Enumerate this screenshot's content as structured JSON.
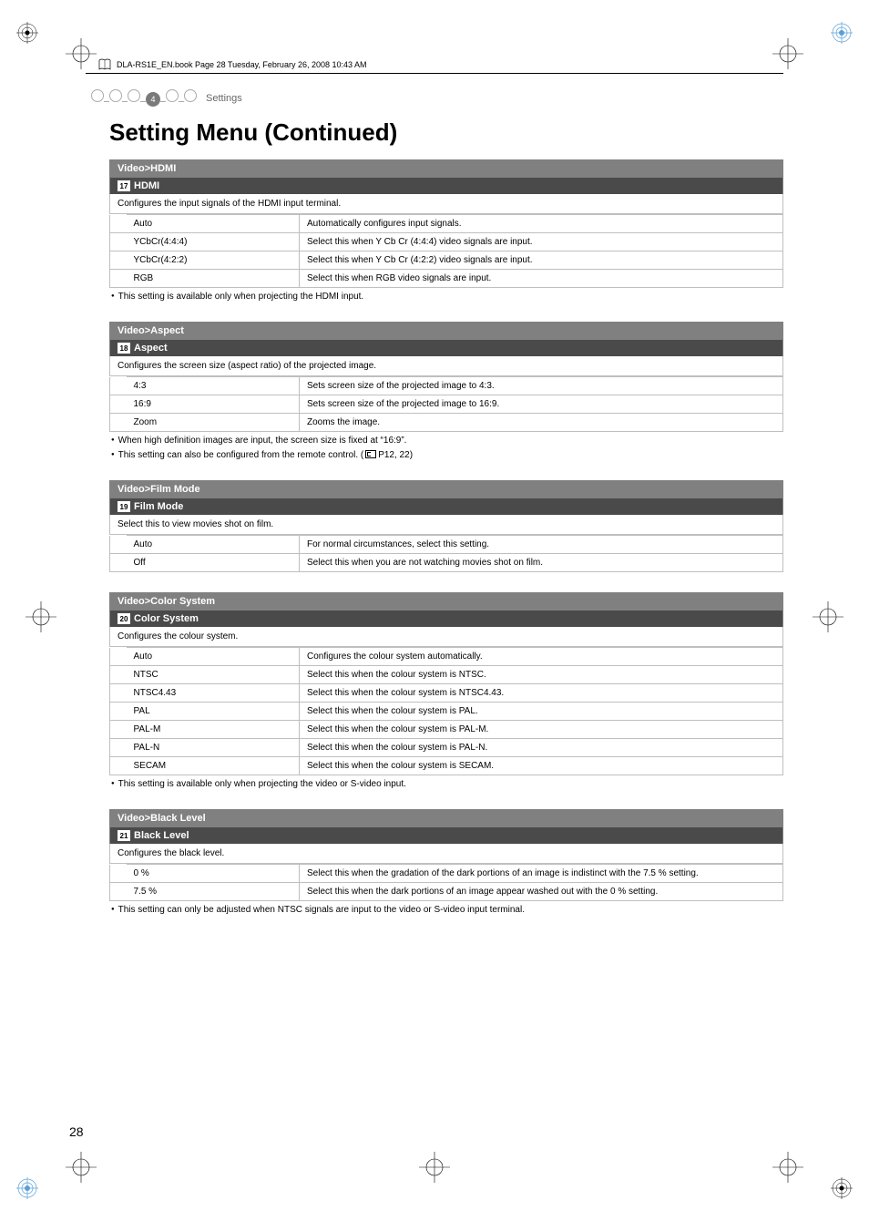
{
  "header": {
    "running_head": "DLA-RS1E_EN.book  Page 28  Tuesday, February 26, 2008  10:43 AM"
  },
  "breadcrumb": {
    "step_number": "4",
    "label": "Settings",
    "total_circles": 6,
    "active_index": 3
  },
  "page_title": "Setting Menu (Continued)",
  "page_number": "28",
  "sections": [
    {
      "crumb": "Video>HDMI",
      "badge": "17",
      "sub_label": "HDMI",
      "desc": "Configures the input signals of the HDMI input terminal.",
      "rows": [
        {
          "key": "Auto",
          "val": "Automatically configures input signals."
        },
        {
          "key": "YCbCr(4:4:4)",
          "val": "Select this when Y Cb Cr (4:4:4) video signals are input."
        },
        {
          "key": "YCbCr(4:2:2)",
          "val": "Select this when Y Cb Cr (4:2:2) video signals are input."
        },
        {
          "key": "RGB",
          "val": "Select this when RGB video signals are input."
        }
      ],
      "notes": [
        "This setting is available only when projecting the HDMI input."
      ]
    },
    {
      "crumb": "Video>Aspect",
      "badge": "18",
      "sub_label": "Aspect",
      "desc": "Configures the screen size (aspect ratio) of the projected image.",
      "rows": [
        {
          "key": "4:3",
          "val": "Sets screen size of the projected image to 4:3."
        },
        {
          "key": "16:9",
          "val": "Sets screen size of the projected image to 16:9."
        },
        {
          "key": "Zoom",
          "val": "Zooms the image."
        }
      ],
      "notes": [
        "When high definition images are input, the screen size is fixed at “16:9”."
      ],
      "ref_note": {
        "prefix": "This setting can also be configured from the remote control. (",
        "ref": "P12, 22",
        "suffix": ")"
      }
    },
    {
      "crumb": "Video>Film Mode",
      "badge": "19",
      "sub_label": "Film Mode",
      "desc": "Select this to view movies shot on film.",
      "rows": [
        {
          "key": "Auto",
          "val": "For normal circumstances, select this setting."
        },
        {
          "key": "Off",
          "val": "Select this when you are not watching movies shot on film."
        }
      ],
      "notes": []
    },
    {
      "crumb": "Video>Color System",
      "badge": "20",
      "sub_label": "Color System",
      "desc": "Configures the colour system.",
      "rows": [
        {
          "key": "Auto",
          "val": "Configures the colour system automatically."
        },
        {
          "key": "NTSC",
          "val": "Select this when the colour system is NTSC."
        },
        {
          "key": "NTSC4.43",
          "val": "Select this when the colour system is NTSC4.43."
        },
        {
          "key": "PAL",
          "val": "Select this when the colour system is PAL."
        },
        {
          "key": "PAL-M",
          "val": "Select this when the colour system is PAL-M."
        },
        {
          "key": "PAL-N",
          "val": "Select this when the colour system is PAL-N."
        },
        {
          "key": "SECAM",
          "val": "Select this when the colour system is SECAM."
        }
      ],
      "notes": [
        "This setting is available only when projecting the video or S-video input."
      ]
    },
    {
      "crumb": "Video>Black Level",
      "badge": "21",
      "sub_label": "Black Level",
      "desc": "Configures the black level.",
      "rows": [
        {
          "key": "0 %",
          "val": "Select this when the gradation of the dark portions of an image is indistinct with the 7.5 % setting."
        },
        {
          "key": "7.5 %",
          "val": "Select this when the dark portions of an image appear washed out with the 0 % setting."
        }
      ],
      "notes": [
        "This setting can only be adjusted when NTSC signals are input to the video or S-video input terminal."
      ]
    }
  ]
}
